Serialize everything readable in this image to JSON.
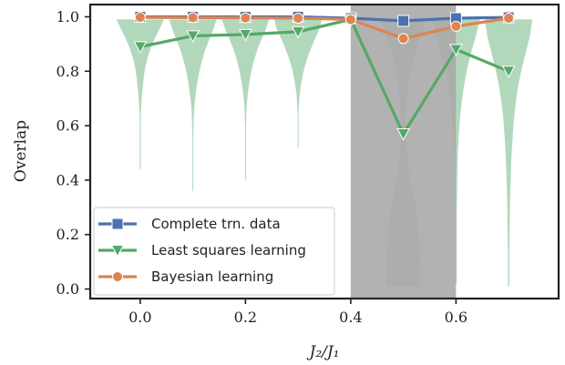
{
  "chart_data": {
    "type": "line",
    "xlabel": "J₂/J₁",
    "ylabel": "Overlap",
    "xlim": [
      -0.095,
      0.795
    ],
    "ylim": [
      -0.035,
      1.045
    ],
    "xticks": [
      0.0,
      0.2,
      0.4,
      0.6
    ],
    "xtick_labels": [
      "0.0",
      "0.2",
      "0.4",
      "0.6"
    ],
    "yticks": [
      0.0,
      0.2,
      0.4,
      0.6,
      0.8,
      1.0
    ],
    "ytick_labels": [
      "0.0",
      "0.2",
      "0.4",
      "0.6",
      "0.8",
      "1.0"
    ],
    "grid": false,
    "legend_position": "lower-left",
    "shaded_region": {
      "x": [
        0.4,
        0.6
      ],
      "color": "#aaaaaa"
    },
    "series": [
      {
        "name": "Complete trn. data",
        "color": "#4c72b0",
        "marker": "square",
        "x": [
          0.0,
          0.1,
          0.2,
          0.3,
          0.4,
          0.5,
          0.6,
          0.7
        ],
        "y": [
          1.0,
          1.0,
          1.0,
          1.0,
          0.995,
          0.985,
          0.995,
          0.998
        ]
      },
      {
        "name": "Least squares learning",
        "color": "#55a868",
        "marker": "triangle-down",
        "x": [
          0.0,
          0.1,
          0.2,
          0.3,
          0.4,
          0.5,
          0.6,
          0.7
        ],
        "y": [
          0.89,
          0.93,
          0.935,
          0.945,
          0.99,
          0.57,
          0.88,
          0.8
        ]
      },
      {
        "name": "Bayesian learning",
        "color": "#dd8452",
        "marker": "circle",
        "x": [
          0.0,
          0.1,
          0.2,
          0.3,
          0.4,
          0.5,
          0.6,
          0.7
        ],
        "y": [
          0.998,
          0.997,
          0.996,
          0.995,
          0.99,
          0.92,
          0.965,
          0.995
        ]
      }
    ],
    "violins": {
      "color": "#55a868",
      "opacity": 0.45,
      "distributions": [
        {
          "x": 0.0,
          "min": 0.44,
          "max": 0.99,
          "half_width": 0.045,
          "widths": [
            0.02,
            0.02,
            0.02,
            0.02,
            0.02,
            0.02,
            0.03,
            0.05,
            0.08,
            0.12,
            0.16,
            0.22,
            0.32,
            0.45,
            0.62,
            0.82,
            1.0
          ]
        },
        {
          "x": 0.1,
          "min": 0.36,
          "max": 0.99,
          "half_width": 0.045,
          "widths": [
            0.02,
            0.02,
            0.02,
            0.02,
            0.02,
            0.02,
            0.03,
            0.04,
            0.07,
            0.12,
            0.18,
            0.26,
            0.37,
            0.5,
            0.67,
            0.85,
            1.0
          ]
        },
        {
          "x": 0.2,
          "min": 0.4,
          "max": 0.99,
          "half_width": 0.045,
          "widths": [
            0.02,
            0.02,
            0.02,
            0.02,
            0.02,
            0.02,
            0.03,
            0.04,
            0.07,
            0.12,
            0.18,
            0.26,
            0.37,
            0.5,
            0.67,
            0.85,
            1.0
          ]
        },
        {
          "x": 0.3,
          "min": 0.52,
          "max": 0.99,
          "half_width": 0.045,
          "widths": [
            0.02,
            0.02,
            0.02,
            0.02,
            0.02,
            0.03,
            0.05,
            0.08,
            0.13,
            0.19,
            0.27,
            0.37,
            0.49,
            0.63,
            0.78,
            0.92,
            1.0
          ]
        },
        {
          "x": 0.5,
          "min": 0.01,
          "max": 0.99,
          "half_width": 0.045,
          "widths": [
            0.72,
            0.72,
            0.7,
            0.66,
            0.6,
            0.5,
            0.35,
            0.22,
            0.15,
            0.12,
            0.12,
            0.14,
            0.2,
            0.32,
            0.5,
            0.72,
            1.0
          ]
        },
        {
          "x": 0.6,
          "min": 0.02,
          "max": 0.99,
          "half_width": 0.045,
          "widths": [
            0.03,
            0.03,
            0.03,
            0.03,
            0.03,
            0.04,
            0.05,
            0.06,
            0.08,
            0.12,
            0.17,
            0.24,
            0.34,
            0.47,
            0.64,
            0.84,
            1.0
          ]
        },
        {
          "x": 0.7,
          "min": 0.01,
          "max": 0.99,
          "half_width": 0.045,
          "widths": [
            0.03,
            0.03,
            0.03,
            0.04,
            0.05,
            0.06,
            0.08,
            0.1,
            0.13,
            0.17,
            0.22,
            0.3,
            0.4,
            0.55,
            0.72,
            0.9,
            1.0
          ]
        }
      ]
    }
  }
}
